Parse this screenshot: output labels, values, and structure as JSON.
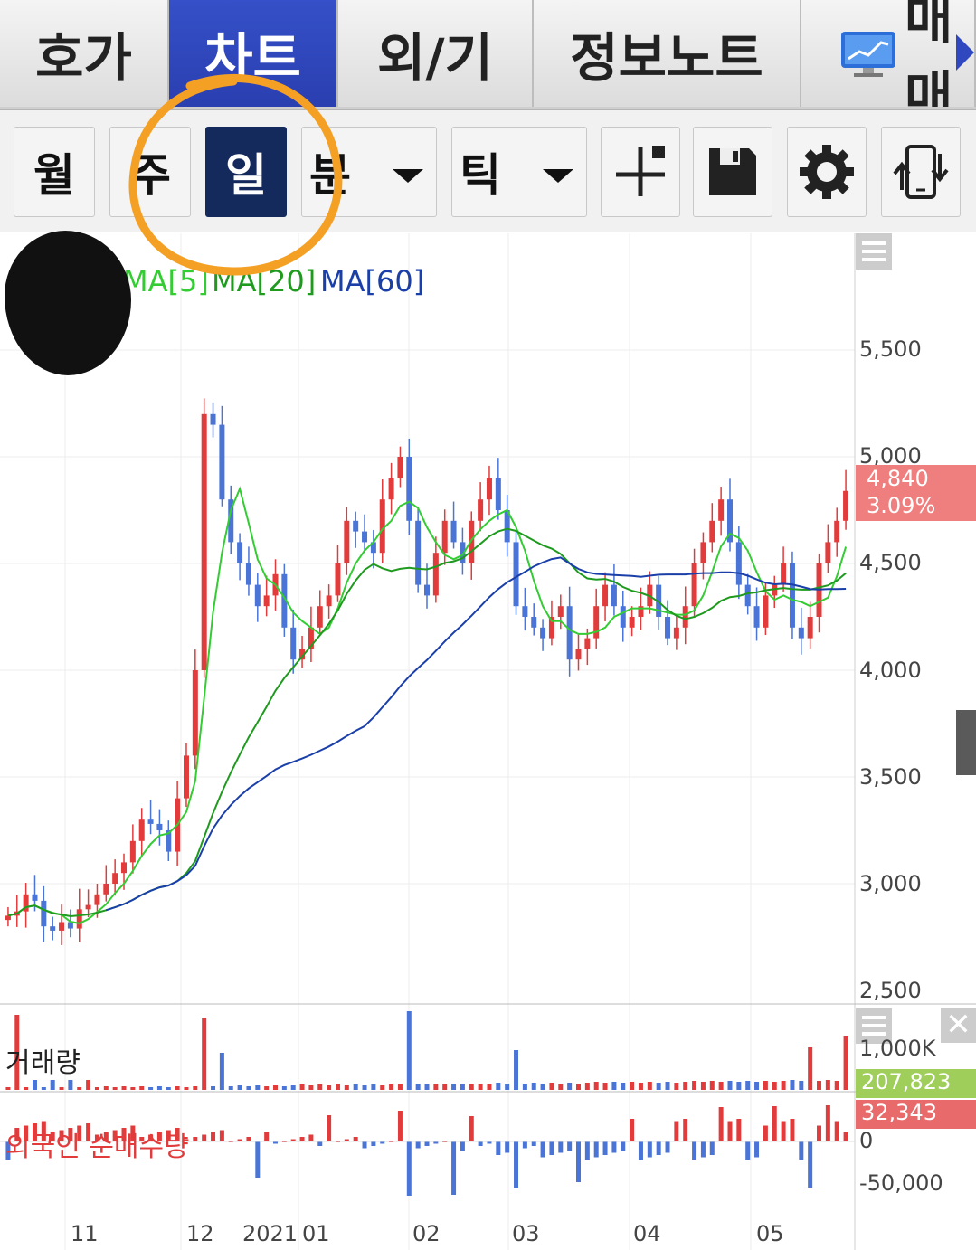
{
  "tabs": [
    {
      "label": "호가"
    },
    {
      "label": "차트"
    },
    {
      "label": "외/기"
    },
    {
      "label": "정보노트"
    },
    {
      "label": "매매"
    }
  ],
  "toolbar": {
    "period_month": "월",
    "period_week": "주",
    "period_day": "일",
    "period_minute": "분",
    "period_tick": "틱"
  },
  "legend": {
    "ma5": "MA[5]",
    "ma20": "MA[20]",
    "ma60": "MA[60]"
  },
  "colors": {
    "up": "#e23b3b",
    "down": "#4a74d6",
    "ma5": "#33cc33",
    "ma20": "#1f9a1f",
    "ma60": "#1a3fa8",
    "tab_active": "#2f47bf",
    "toolbar_selected": "#142a5c",
    "highlight_circle": "#f4a024"
  },
  "price": {
    "last": "4,840",
    "change": "3.09%"
  },
  "volume": {
    "title": "거래량",
    "axis_top": "1,000K",
    "last": "207,823"
  },
  "foreign": {
    "title": "외국인 순매수량",
    "last": "32,343",
    "axis_zero": "0",
    "axis_neg": "-50,000"
  },
  "chart_data": {
    "type": "candlestick",
    "price_ticks": [
      "5,500",
      "5,000",
      "4,500",
      "4,000",
      "3,500",
      "3,000",
      "2,500"
    ],
    "x_ticks": [
      "11",
      "12",
      "2021",
      "01",
      "02",
      "03",
      "04",
      "05"
    ],
    "close_series": [
      2850,
      2870,
      2950,
      2920,
      2800,
      2780,
      2820,
      2790,
      2880,
      2900,
      2950,
      3000,
      3050,
      3100,
      3200,
      3300,
      3280,
      3250,
      3150,
      3400,
      3600,
      4000,
      5200,
      5150,
      4800,
      4600,
      4500,
      4400,
      4300,
      4350,
      4450,
      4200,
      4050,
      4100,
      4200,
      4300,
      4350,
      4500,
      4700,
      4650,
      4600,
      4550,
      4800,
      4900,
      5000,
      4700,
      4400,
      4350,
      4550,
      4700,
      4600,
      4500,
      4700,
      4800,
      4900,
      4750,
      4600,
      4300,
      4250,
      4200,
      4150,
      4250,
      4300,
      4050,
      4100,
      4150,
      4300,
      4400,
      4300,
      4200,
      4250,
      4300,
      4400,
      4250,
      4150,
      4200,
      4300,
      4500,
      4600,
      4700,
      4800,
      4600,
      4400,
      4300,
      4200,
      4350,
      4400,
      4500,
      4200,
      4150,
      4250,
      4500,
      4600,
      4700,
      4840
    ],
    "ma60_start": 2830,
    "ma60_end": 4400,
    "volume_peak_k": 1000
  }
}
